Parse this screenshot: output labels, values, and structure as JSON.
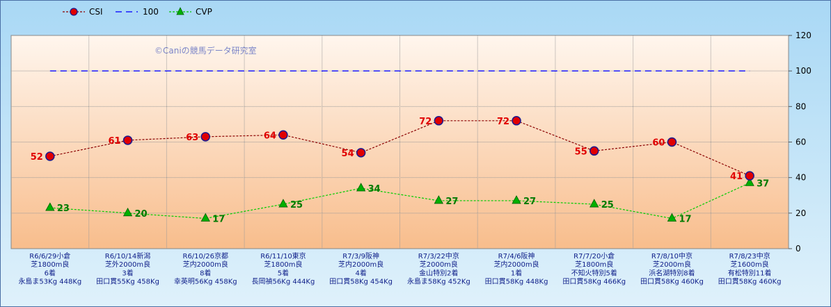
{
  "watermark": "©Caniの競馬データ研究室",
  "chart_data": {
    "type": "line",
    "ylim": [
      0,
      120
    ],
    "yticks": [
      0,
      20,
      40,
      60,
      80,
      100,
      120
    ],
    "legend_position": "top-left",
    "grid": true,
    "categories": [
      [
        "R6/6/29小倉",
        "芝1800m良",
        "6着",
        "永島ま53Kg 448Kg"
      ],
      [
        "R6/10/14新潟",
        "芝外2000m良",
        "3着",
        "田口貫55Kg 458Kg"
      ],
      [
        "R6/10/26京都",
        "芝内2000m良",
        "8着",
        "幸英明56Kg 458Kg"
      ],
      [
        "R6/11/10東京",
        "芝1800m良",
        "5着",
        "長岡禎56Kg 444Kg"
      ],
      [
        "R7/3/9阪神",
        "芝内2000m良",
        "4着",
        "田口貫58Kg 454Kg"
      ],
      [
        "R7/3/22中京",
        "芝2000m良",
        "金山特別2着",
        "永島ま58Kg 452Kg"
      ],
      [
        "R7/4/6阪神",
        "芝内2000m良",
        "1着",
        "田口貫58Kg 448Kg"
      ],
      [
        "R7/7/20小倉",
        "芝1800m良",
        "不知火特別5着",
        "田口貫58Kg 466Kg"
      ],
      [
        "R7/8/10中京",
        "芝2000m良",
        "浜名湖特別8着",
        "田口貫58Kg 460Kg"
      ],
      [
        "R7/8/23中京",
        "芝1600m良",
        "有松特別11着",
        "田口貫58Kg 460Kg"
      ]
    ],
    "series": [
      {
        "name": "CSI",
        "values": [
          52,
          61,
          63,
          64,
          54,
          72,
          72,
          55,
          60,
          41
        ],
        "color": "#8b0000",
        "marker_color": "#e00000"
      },
      {
        "name": "100",
        "values": [
          100,
          100,
          100,
          100,
          100,
          100,
          100,
          100,
          100,
          100
        ],
        "color": "#1a1aff"
      },
      {
        "name": "CVP",
        "values": [
          23,
          20,
          17,
          25,
          34,
          27,
          27,
          25,
          17,
          37
        ],
        "color": "#00cc00",
        "marker_color": "#00b000"
      }
    ]
  }
}
